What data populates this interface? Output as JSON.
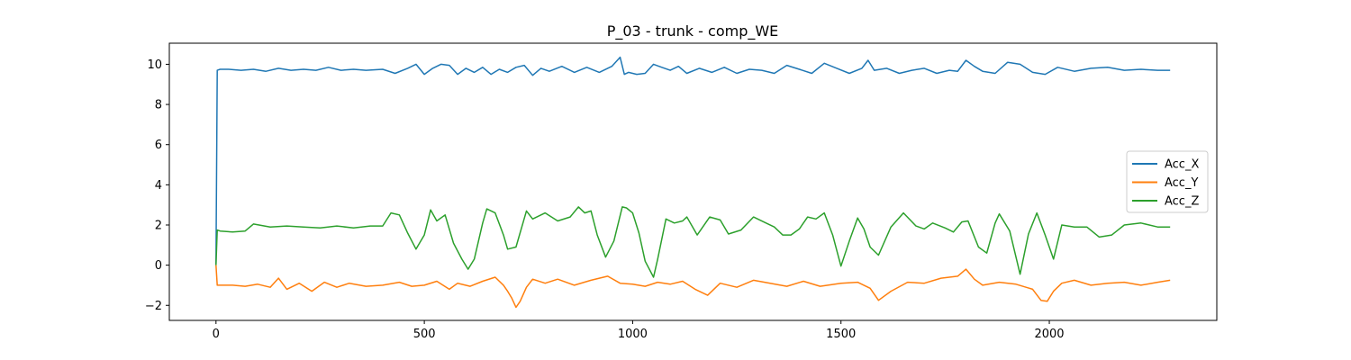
{
  "chart_data": {
    "type": "line",
    "title": "P_03 - trunk - comp_WE",
    "xlabel": "",
    "ylabel": "",
    "xlim": [
      -112,
      2402
    ],
    "ylim": [
      -2.75,
      11.05
    ],
    "xticks": [
      0,
      500,
      1000,
      1500,
      2000
    ],
    "yticks": [
      -2,
      0,
      2,
      4,
      6,
      8,
      10
    ],
    "ytick_labels": [
      "−2",
      "0",
      "2",
      "4",
      "6",
      "8",
      "10"
    ],
    "grid": false,
    "legend_position": "center right",
    "series": [
      {
        "name": "Acc_X",
        "color": "#1f77b4",
        "x": [
          0,
          3,
          10,
          30,
          60,
          90,
          120,
          150,
          180,
          210,
          240,
          270,
          300,
          330,
          360,
          400,
          430,
          460,
          480,
          500,
          520,
          540,
          560,
          580,
          600,
          620,
          640,
          660,
          680,
          700,
          720,
          740,
          760,
          780,
          800,
          830,
          860,
          890,
          920,
          950,
          970,
          980,
          990,
          1010,
          1030,
          1050,
          1070,
          1090,
          1110,
          1130,
          1160,
          1190,
          1220,
          1250,
          1280,
          1310,
          1340,
          1370,
          1400,
          1430,
          1460,
          1490,
          1520,
          1550,
          1565,
          1580,
          1610,
          1640,
          1670,
          1700,
          1730,
          1760,
          1780,
          1800,
          1820,
          1840,
          1870,
          1900,
          1930,
          1960,
          1990,
          2020,
          2060,
          2100,
          2140,
          2180,
          2220,
          2260,
          2290
        ],
        "y": [
          0.05,
          9.7,
          9.75,
          9.75,
          9.7,
          9.75,
          9.65,
          9.8,
          9.7,
          9.75,
          9.7,
          9.85,
          9.7,
          9.75,
          9.7,
          9.75,
          9.55,
          9.8,
          10.0,
          9.5,
          9.8,
          10.0,
          9.95,
          9.5,
          9.8,
          9.6,
          9.85,
          9.5,
          9.75,
          9.6,
          9.85,
          9.95,
          9.45,
          9.8,
          9.65,
          9.9,
          9.6,
          9.85,
          9.6,
          9.9,
          10.35,
          9.5,
          9.6,
          9.5,
          9.55,
          10.0,
          9.85,
          9.7,
          9.9,
          9.55,
          9.8,
          9.6,
          9.85,
          9.55,
          9.75,
          9.7,
          9.55,
          9.95,
          9.75,
          9.55,
          10.05,
          9.8,
          9.55,
          9.8,
          10.2,
          9.7,
          9.8,
          9.55,
          9.7,
          9.8,
          9.55,
          9.7,
          9.65,
          10.2,
          9.9,
          9.65,
          9.55,
          10.1,
          10.0,
          9.6,
          9.5,
          9.85,
          9.65,
          9.8,
          9.85,
          9.7,
          9.75,
          9.7,
          9.7
        ]
      },
      {
        "name": "Acc_Y",
        "color": "#ff7f0e",
        "x": [
          0,
          3,
          10,
          40,
          70,
          100,
          130,
          150,
          170,
          200,
          230,
          260,
          290,
          320,
          360,
          400,
          440,
          470,
          500,
          530,
          560,
          580,
          610,
          640,
          670,
          690,
          700,
          710,
          720,
          730,
          745,
          760,
          790,
          820,
          860,
          900,
          940,
          970,
          1000,
          1030,
          1060,
          1090,
          1120,
          1150,
          1180,
          1210,
          1250,
          1290,
          1330,
          1370,
          1410,
          1450,
          1500,
          1540,
          1570,
          1590,
          1620,
          1660,
          1700,
          1740,
          1780,
          1800,
          1820,
          1840,
          1880,
          1920,
          1960,
          1980,
          1995,
          2010,
          2030,
          2060,
          2100,
          2140,
          2180,
          2220,
          2260,
          2290
        ],
        "y": [
          0.0,
          -1.0,
          -1.0,
          -1.0,
          -1.05,
          -0.95,
          -1.1,
          -0.65,
          -1.2,
          -0.9,
          -1.3,
          -0.85,
          -1.1,
          -0.9,
          -1.05,
          -1.0,
          -0.85,
          -1.05,
          -1.0,
          -0.8,
          -1.2,
          -0.9,
          -1.05,
          -0.8,
          -0.6,
          -1.0,
          -1.3,
          -1.65,
          -2.1,
          -1.8,
          -1.1,
          -0.7,
          -0.9,
          -0.7,
          -1.0,
          -0.75,
          -0.55,
          -0.9,
          -0.95,
          -1.05,
          -0.85,
          -0.95,
          -0.8,
          -1.2,
          -1.5,
          -0.9,
          -1.1,
          -0.75,
          -0.9,
          -1.05,
          -0.8,
          -1.05,
          -0.9,
          -0.85,
          -1.15,
          -1.75,
          -1.3,
          -0.85,
          -0.9,
          -0.65,
          -0.55,
          -0.2,
          -0.7,
          -1.0,
          -0.85,
          -0.95,
          -1.2,
          -1.75,
          -1.8,
          -1.3,
          -0.9,
          -0.75,
          -1.0,
          -0.9,
          -0.85,
          -1.0,
          -0.85,
          -0.75
        ]
      },
      {
        "name": "Acc_Z",
        "color": "#2ca02c",
        "x": [
          0,
          3,
          10,
          40,
          70,
          90,
          130,
          170,
          210,
          250,
          290,
          330,
          370,
          400,
          420,
          440,
          460,
          480,
          500,
          515,
          530,
          550,
          570,
          590,
          605,
          620,
          640,
          650,
          670,
          690,
          700,
          720,
          745,
          760,
          790,
          820,
          850,
          870,
          885,
          900,
          915,
          935,
          955,
          975,
          985,
          1000,
          1015,
          1030,
          1050,
          1060,
          1080,
          1100,
          1120,
          1130,
          1155,
          1185,
          1210,
          1230,
          1260,
          1290,
          1320,
          1340,
          1360,
          1380,
          1400,
          1420,
          1440,
          1460,
          1480,
          1500,
          1520,
          1540,
          1555,
          1570,
          1590,
          1620,
          1650,
          1680,
          1700,
          1720,
          1750,
          1770,
          1790,
          1805,
          1830,
          1850,
          1870,
          1880,
          1905,
          1930,
          1950,
          1970,
          1990,
          2010,
          2030,
          2060,
          2090,
          2120,
          2150,
          2180,
          2220,
          2260,
          2290
        ],
        "y": [
          0.0,
          1.75,
          1.7,
          1.65,
          1.7,
          2.05,
          1.9,
          1.95,
          1.9,
          1.85,
          1.95,
          1.85,
          1.95,
          1.95,
          2.6,
          2.5,
          1.6,
          0.8,
          1.5,
          2.75,
          2.2,
          2.5,
          1.1,
          0.3,
          -0.2,
          0.3,
          2.1,
          2.8,
          2.6,
          1.5,
          0.8,
          0.9,
          2.7,
          2.3,
          2.6,
          2.2,
          2.4,
          2.9,
          2.6,
          2.7,
          1.5,
          0.4,
          1.2,
          2.9,
          2.85,
          2.6,
          1.6,
          0.2,
          -0.6,
          0.3,
          2.3,
          2.1,
          2.2,
          2.4,
          1.5,
          2.4,
          2.25,
          1.55,
          1.75,
          2.4,
          2.1,
          1.9,
          1.5,
          1.5,
          1.8,
          2.4,
          2.3,
          2.6,
          1.5,
          -0.05,
          1.2,
          2.35,
          1.8,
          0.9,
          0.5,
          1.9,
          2.6,
          1.95,
          1.8,
          2.1,
          1.85,
          1.65,
          2.15,
          2.2,
          0.9,
          0.6,
          2.1,
          2.55,
          1.7,
          -0.45,
          1.55,
          2.6,
          1.5,
          0.3,
          2.0,
          1.9,
          1.9,
          1.4,
          1.5,
          2.0,
          2.1,
          1.9,
          1.9
        ]
      }
    ]
  }
}
